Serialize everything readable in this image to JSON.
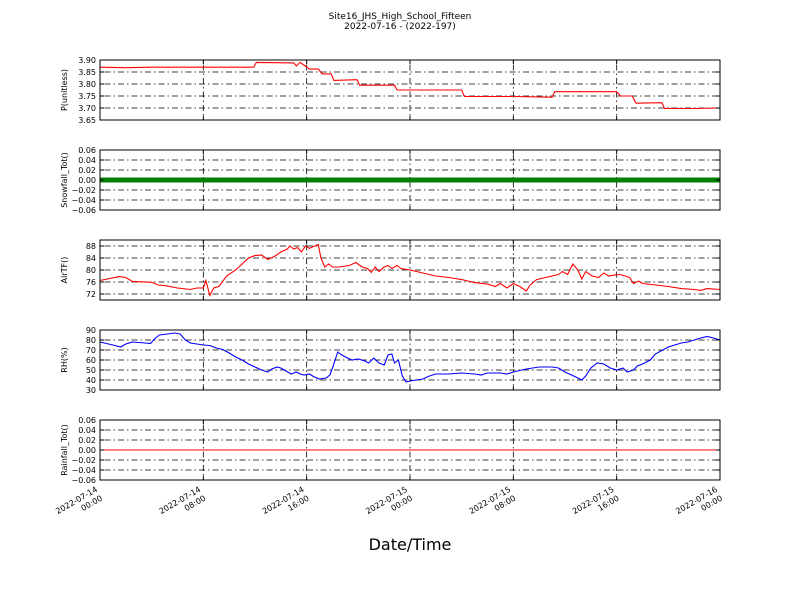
{
  "title": "Site16_JHS_High_School_Fifteen",
  "subtitle": "2022-07-16 - (2022-197)",
  "xlabel": "Date/Time",
  "x_tick_labels": [
    [
      "2022-07-14",
      "00:00"
    ],
    [
      "2022-07-14",
      "08:00"
    ],
    [
      "2022-07-14",
      "16:00"
    ],
    [
      "2022-07-15",
      "00:00"
    ],
    [
      "2022-07-15",
      "08:00"
    ],
    [
      "2022-07-15",
      "16:00"
    ],
    [
      "2022-07-16",
      "00:00"
    ]
  ],
  "chart_data": [
    {
      "type": "line",
      "ylabel": "P(unitless)",
      "ylim": [
        3.65,
        3.9
      ],
      "yticks": [
        3.65,
        3.7,
        3.75,
        3.8,
        3.85,
        3.9
      ],
      "ytick_labels": [
        "3.65",
        "3.70",
        "3.75",
        "3.80",
        "3.85",
        "3.90"
      ],
      "xlim_hours": [
        0,
        48
      ],
      "grid": true,
      "series": [
        {
          "color": "#ff0000",
          "points": [
            [
              0,
              3.87
            ],
            [
              2,
              3.868
            ],
            [
              4,
              3.87
            ],
            [
              6,
              3.87
            ],
            [
              8,
              3.87
            ],
            [
              10,
              3.87
            ],
            [
              11.9,
              3.87
            ],
            [
              12.1,
              3.89
            ],
            [
              15,
              3.888
            ],
            [
              15.2,
              3.875
            ],
            [
              15.5,
              3.89
            ],
            [
              15.9,
              3.875
            ],
            [
              16.2,
              3.862
            ],
            [
              16.9,
              3.862
            ],
            [
              17.2,
              3.842
            ],
            [
              17.9,
              3.842
            ],
            [
              18.1,
              3.815
            ],
            [
              19.9,
              3.818
            ],
            [
              20.1,
              3.795
            ],
            [
              22,
              3.795
            ],
            [
              22.8,
              3.795
            ],
            [
              23,
              3.775
            ],
            [
              28,
              3.775
            ],
            [
              28.2,
              3.748
            ],
            [
              32,
              3.748
            ],
            [
              35,
              3.745
            ],
            [
              35.2,
              3.768
            ],
            [
              38,
              3.768
            ],
            [
              40,
              3.768
            ],
            [
              40.3,
              3.75
            ],
            [
              41.2,
              3.75
            ],
            [
              41.5,
              3.72
            ],
            [
              43.5,
              3.722
            ],
            [
              43.7,
              3.698
            ],
            [
              46,
              3.698
            ],
            [
              48,
              3.7
            ]
          ]
        }
      ]
    },
    {
      "type": "line",
      "ylabel": "Snowfall_Tot()",
      "ylim": [
        -0.06,
        0.06
      ],
      "yticks": [
        -0.06,
        -0.04,
        -0.02,
        0.0,
        0.02,
        0.04,
        0.06
      ],
      "ytick_labels": [
        "−0.06",
        "−0.04",
        "−0.02",
        "0.00",
        "0.02",
        "0.04",
        "0.06"
      ],
      "xlim_hours": [
        0,
        48
      ],
      "grid": true,
      "marker": "dot",
      "series": [
        {
          "color": "#008000",
          "points": [
            [
              0,
              0
            ],
            [
              48,
              0
            ]
          ]
        }
      ]
    },
    {
      "type": "line",
      "ylabel": "AirTF()",
      "ylim": [
        70,
        90
      ],
      "yticks": [
        72,
        76,
        80,
        84,
        88
      ],
      "ytick_labels": [
        "72",
        "76",
        "80",
        "84",
        "88"
      ],
      "xlim_hours": [
        0,
        48
      ],
      "grid": true,
      "series": [
        {
          "color": "#ff0000",
          "points": [
            [
              0,
              76.5
            ],
            [
              1.5,
              77.8
            ],
            [
              2,
              77.5
            ],
            [
              2.5,
              76.2
            ],
            [
              3,
              76.1
            ],
            [
              4,
              75.9
            ],
            [
              4.5,
              75
            ],
            [
              5,
              74.8
            ],
            [
              6,
              74
            ],
            [
              7,
              73.5
            ],
            [
              7.5,
              74
            ],
            [
              8,
              74
            ],
            [
              8.2,
              76.5
            ],
            [
              8.5,
              71.5
            ],
            [
              8.8,
              74
            ],
            [
              9.2,
              74.5
            ],
            [
              9.8,
              78
            ],
            [
              10.5,
              80
            ],
            [
              11,
              82
            ],
            [
              11.5,
              84
            ],
            [
              12,
              84.8
            ],
            [
              12.5,
              85
            ],
            [
              13,
              83.5
            ],
            [
              13.5,
              84.5
            ],
            [
              14,
              86
            ],
            [
              14.5,
              87
            ],
            [
              14.7,
              88
            ],
            [
              15,
              87
            ],
            [
              15.3,
              87.5
            ],
            [
              15.6,
              86
            ],
            [
              15.9,
              88
            ],
            [
              16.2,
              87.2
            ],
            [
              16.9,
              88.5
            ],
            [
              17.1,
              84
            ],
            [
              17.4,
              81
            ],
            [
              17.7,
              82
            ],
            [
              18,
              81
            ],
            [
              18.5,
              81
            ],
            [
              19.3,
              81.5
            ],
            [
              19.8,
              82.5
            ],
            [
              20.3,
              81
            ],
            [
              20.7,
              80.5
            ],
            [
              21,
              79.2
            ],
            [
              21.3,
              81
            ],
            [
              21.6,
              79.5
            ],
            [
              22,
              81
            ],
            [
              22.3,
              81.5
            ],
            [
              22.6,
              80.5
            ],
            [
              23,
              81.5
            ],
            [
              23.3,
              80.5
            ],
            [
              24,
              80
            ],
            [
              25,
              79
            ],
            [
              26,
              78
            ],
            [
              27,
              77.5
            ],
            [
              28,
              76.8
            ],
            [
              29,
              75.8
            ],
            [
              30,
              75.3
            ],
            [
              30.6,
              74.5
            ],
            [
              31,
              75.5
            ],
            [
              31.5,
              74
            ],
            [
              32,
              75.5
            ],
            [
              32.5,
              74.5
            ],
            [
              33,
              73
            ],
            [
              33.3,
              75
            ],
            [
              33.8,
              76.8
            ],
            [
              34.5,
              77.5
            ],
            [
              35.5,
              78.5
            ],
            [
              35.8,
              79.5
            ],
            [
              36.2,
              78.5
            ],
            [
              36.6,
              82
            ],
            [
              37,
              80
            ],
            [
              37.3,
              77
            ],
            [
              37.6,
              79.5
            ],
            [
              38.1,
              78
            ],
            [
              38.6,
              77.5
            ],
            [
              39,
              79
            ],
            [
              39.4,
              78
            ],
            [
              39.8,
              78.3
            ],
            [
              40.3,
              78.5
            ],
            [
              41,
              77.5
            ],
            [
              41.3,
              75.5
            ],
            [
              41.7,
              76.3
            ],
            [
              42,
              75.5
            ],
            [
              43,
              75
            ],
            [
              44,
              74.5
            ],
            [
              45,
              73.8
            ],
            [
              46,
              73.5
            ],
            [
              46.5,
              73.2
            ],
            [
              47,
              73.8
            ],
            [
              48,
              73.5
            ]
          ]
        }
      ]
    },
    {
      "type": "line",
      "ylabel": "RH(%)",
      "ylim": [
        30,
        90
      ],
      "yticks": [
        30,
        40,
        50,
        60,
        70,
        80,
        90
      ],
      "ytick_labels": [
        "30",
        "40",
        "50",
        "60",
        "70",
        "80",
        "90"
      ],
      "xlim_hours": [
        0,
        48
      ],
      "grid": true,
      "series": [
        {
          "color": "#0000ff",
          "points": [
            [
              0,
              78
            ],
            [
              1,
              75
            ],
            [
              1.6,
              73
            ],
            [
              2,
              76
            ],
            [
              2.5,
              78
            ],
            [
              3.5,
              77
            ],
            [
              3.9,
              76.5
            ],
            [
              4.3,
              82
            ],
            [
              4.6,
              85
            ],
            [
              5.2,
              86
            ],
            [
              5.8,
              87
            ],
            [
              6.2,
              86
            ],
            [
              6.6,
              80
            ],
            [
              7,
              77
            ],
            [
              7.5,
              76
            ],
            [
              8,
              75
            ],
            [
              8.5,
              74.5
            ],
            [
              8.8,
              73
            ],
            [
              9,
              72
            ],
            [
              9.5,
              70.5
            ],
            [
              10,
              67
            ],
            [
              10.5,
              63
            ],
            [
              11,
              60
            ],
            [
              11.5,
              56
            ],
            [
              12,
              53
            ],
            [
              12.5,
              50
            ],
            [
              13,
              48
            ],
            [
              13.3,
              51
            ],
            [
              13.7,
              53
            ],
            [
              14,
              52
            ],
            [
              14.4,
              49
            ],
            [
              14.8,
              46
            ],
            [
              15.2,
              48
            ],
            [
              15.5,
              46
            ],
            [
              15.8,
              45
            ],
            [
              16.2,
              46
            ],
            [
              16.6,
              43
            ],
            [
              17,
              41
            ],
            [
              17.5,
              42
            ],
            [
              17.8,
              45
            ],
            [
              18,
              52
            ],
            [
              18.4,
              68
            ],
            [
              18.6,
              66
            ],
            [
              19,
              63
            ],
            [
              19.5,
              60
            ],
            [
              20,
              61
            ],
            [
              20.5,
              59
            ],
            [
              20.8,
              57
            ],
            [
              21.2,
              62
            ],
            [
              21.6,
              57
            ],
            [
              22,
              55
            ],
            [
              22.3,
              65
            ],
            [
              22.6,
              66
            ],
            [
              22.8,
              57
            ],
            [
              23.1,
              60
            ],
            [
              23.4,
              44
            ],
            [
              23.7,
              38
            ],
            [
              24,
              39
            ],
            [
              25,
              41
            ],
            [
              25.5,
              44
            ],
            [
              26,
              46
            ],
            [
              27,
              46
            ],
            [
              28,
              47
            ],
            [
              29,
              46
            ],
            [
              29.5,
              45
            ],
            [
              30,
              47
            ],
            [
              31,
              47
            ],
            [
              31.5,
              46
            ],
            [
              32,
              48
            ],
            [
              33,
              51
            ],
            [
              33.5,
              52
            ],
            [
              34,
              53
            ],
            [
              35,
              53
            ],
            [
              35.5,
              52
            ],
            [
              36,
              48
            ],
            [
              36.5,
              45
            ],
            [
              37,
              42
            ],
            [
              37.3,
              40
            ],
            [
              37.6,
              44
            ],
            [
              38,
              52
            ],
            [
              38.5,
              57
            ],
            [
              39,
              56
            ],
            [
              39.5,
              52
            ],
            [
              40,
              50
            ],
            [
              40.5,
              52
            ],
            [
              40.8,
              48
            ],
            [
              41.3,
              50
            ],
            [
              41.6,
              54
            ],
            [
              42,
              56
            ],
            [
              42.6,
              60
            ],
            [
              43,
              66
            ],
            [
              44,
              73
            ],
            [
              45,
              77
            ],
            [
              45.5,
              78
            ],
            [
              46,
              80
            ],
            [
              46.5,
              82
            ],
            [
              47,
              83.5
            ],
            [
              47.5,
              82
            ],
            [
              48,
              80
            ]
          ]
        }
      ]
    },
    {
      "type": "line",
      "ylabel": "Rainfall_Tot()",
      "ylim": [
        -0.06,
        0.06
      ],
      "yticks": [
        -0.06,
        -0.04,
        -0.02,
        0.0,
        0.02,
        0.04,
        0.06
      ],
      "ytick_labels": [
        "−0.06",
        "−0.04",
        "−0.02",
        "0.00",
        "0.02",
        "0.04",
        "0.06"
      ],
      "xlim_hours": [
        0,
        48
      ],
      "grid": true,
      "series": [
        {
          "color": "#ff0000",
          "points": [
            [
              0,
              0
            ],
            [
              48,
              0
            ]
          ]
        }
      ]
    }
  ]
}
